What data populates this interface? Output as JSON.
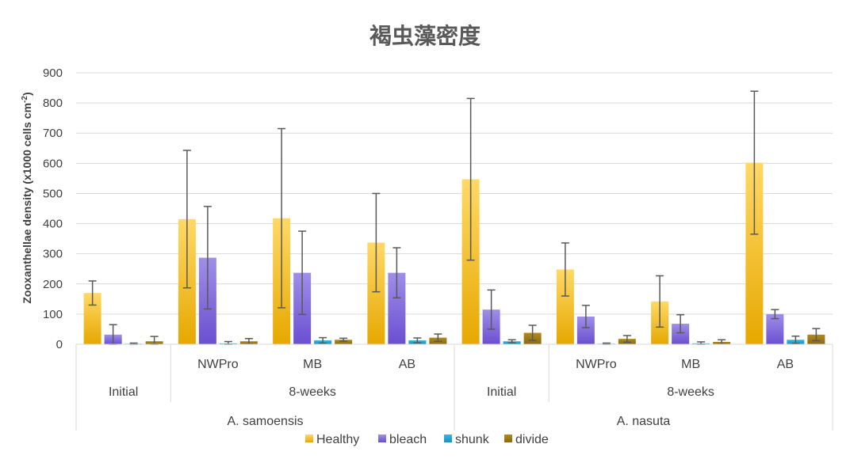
{
  "chart_data": {
    "type": "bar",
    "title": "褐虫藻密度",
    "ylabel": "Zooxanthellae density (x1000 cells cm",
    "ylabel_sup": "-2",
    "ylabel_close": ")",
    "ylim": [
      0,
      900
    ],
    "yticks": [
      0,
      100,
      200,
      300,
      400,
      500,
      600,
      700,
      800,
      900
    ],
    "grid": true,
    "legend_position": "bottom",
    "categories": [
      {
        "label": "",
        "group": "Initial",
        "species": "A. samoensis"
      },
      {
        "label": "NWPro",
        "group": "8-weeks",
        "species": "A. samoensis"
      },
      {
        "label": "MB",
        "group": "8-weeks",
        "species": "A. samoensis"
      },
      {
        "label": "AB",
        "group": "8-weeks",
        "species": "A. samoensis"
      },
      {
        "label": "",
        "group": "Initial",
        "species": "A. nasuta"
      },
      {
        "label": "NWPro",
        "group": "8-weeks",
        "species": "A. nasuta"
      },
      {
        "label": "MB",
        "group": "8-weeks",
        "species": "A. nasuta"
      },
      {
        "label": "AB",
        "group": "8-weeks",
        "species": "A. nasuta"
      }
    ],
    "groups": [
      {
        "label": "Initial",
        "span": [
          0,
          0
        ]
      },
      {
        "label": "8-weeks",
        "span": [
          1,
          3
        ]
      },
      {
        "label": "Initial",
        "span": [
          4,
          4
        ]
      },
      {
        "label": "8-weeks",
        "span": [
          5,
          7
        ]
      }
    ],
    "species": [
      {
        "label": "A. samoensis",
        "span": [
          0,
          3
        ]
      },
      {
        "label": "A. nasuta",
        "span": [
          4,
          7
        ]
      }
    ],
    "series": [
      {
        "name": "Healthy",
        "color_top": "#FFD966",
        "color_bottom": "#E6A800",
        "values": [
          170,
          415,
          418,
          337,
          547,
          248,
          142,
          602
        ],
        "errors": [
          40,
          228,
          297,
          163,
          268,
          88,
          85,
          237
        ]
      },
      {
        "name": "bleach",
        "color_top": "#9F8FE8",
        "color_bottom": "#6A4FD0",
        "values": [
          32,
          287,
          237,
          237,
          115,
          92,
          68,
          100
        ],
        "errors": [
          33,
          170,
          138,
          83,
          65,
          37,
          30,
          15
        ]
      },
      {
        "name": "shunk",
        "color_top": "#33B8E0",
        "color_bottom": "#1E90C0",
        "values": [
          2,
          3,
          13,
          13,
          10,
          2,
          3,
          15
        ],
        "errors": [
          2,
          6,
          9,
          8,
          5,
          2,
          5,
          12
        ]
      },
      {
        "name": "divide",
        "color_top": "#B08A20",
        "color_bottom": "#8A6A10",
        "values": [
          10,
          10,
          15,
          22,
          38,
          18,
          8,
          32
        ],
        "errors": [
          16,
          9,
          5,
          12,
          25,
          11,
          7,
          20
        ]
      }
    ]
  }
}
